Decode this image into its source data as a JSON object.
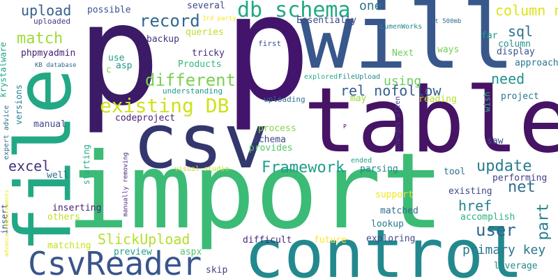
{
  "words": [
    {
      "text": "p",
      "color": "#3b1a66"
    },
    {
      "text": "p",
      "color": "#43146b"
    },
    {
      "text": "will",
      "color": "#38588c"
    },
    {
      "text": "table",
      "color": "#471365"
    },
    {
      "text": "import",
      "color": "#3bbb75"
    },
    {
      "text": "csv",
      "color": "#33376e"
    },
    {
      "text": "control",
      "color": "#23898e"
    },
    {
      "text": "file",
      "color": "#22a884"
    },
    {
      "text": "CsvReader",
      "color": "#39558c"
    },
    {
      "text": "db schema",
      "color": "#22a884"
    },
    {
      "text": "existing DB",
      "color": "#d0e11c"
    },
    {
      "text": "different",
      "color": "#7ad151"
    },
    {
      "text": "record",
      "color": "#30688e"
    },
    {
      "text": "upload",
      "color": "#355f8d"
    },
    {
      "text": "match",
      "color": "#9fda3a"
    },
    {
      "text": "Framework",
      "color": "#1f9e89"
    },
    {
      "text": "update",
      "color": "#287c8e"
    },
    {
      "text": "excel",
      "color": "#46327e"
    },
    {
      "text": "SlickUpload",
      "color": "#b5de2b"
    },
    {
      "text": "primary key",
      "color": "#2a788e"
    },
    {
      "text": "user",
      "color": "#31668e"
    },
    {
      "text": "net",
      "color": "#2d708e"
    },
    {
      "text": "part",
      "color": "#277f8e"
    },
    {
      "text": "href",
      "color": "#26828e"
    },
    {
      "text": "rel nofollow",
      "color": "#355f8d"
    },
    {
      "text": "using",
      "color": "#6ccd5a"
    },
    {
      "text": "need",
      "color": "#21918c"
    },
    {
      "text": "sql",
      "color": "#2e6d8e"
    },
    {
      "text": "column names",
      "color": "#dde318"
    },
    {
      "text": "one",
      "color": "#2b748e"
    },
    {
      "text": "leverage",
      "color": "#228c8d"
    },
    {
      "text": "exploring",
      "color": "#3e4989"
    },
    {
      "text": "future",
      "color": "#fde725"
    },
    {
      "text": "difficult",
      "color": "#482878"
    },
    {
      "text": "inserting",
      "color": "#482173"
    },
    {
      "text": "others",
      "color": "#c2df23"
    },
    {
      "text": "matching",
      "color": "#c8e020"
    },
    {
      "text": "preview",
      "color": "#1fa188"
    },
    {
      "text": "aspx",
      "color": "#50c46a"
    },
    {
      "text": "skip",
      "color": "#433e85"
    },
    {
      "text": "lookup",
      "color": "#2a788e"
    },
    {
      "text": "matched",
      "color": "#31688e"
    },
    {
      "text": "accomplish",
      "color": "#2db27d"
    },
    {
      "text": "existing",
      "color": "#3f4788"
    },
    {
      "text": "performing",
      "color": "#433e85"
    },
    {
      "text": "tool",
      "color": "#2c728e"
    },
    {
      "text": "support",
      "color": "#f1e51d"
    },
    {
      "text": "parsing",
      "color": "#24868e"
    },
    {
      "text": "provides",
      "color": "#52c569"
    },
    {
      "text": "schema",
      "color": "#3f4889"
    },
    {
      "text": "process",
      "color": "#86d549"
    },
    {
      "text": "saw",
      "color": "#3e4c8a"
    },
    {
      "text": "codeproject",
      "color": "#481f70"
    },
    {
      "text": "manual",
      "color": "#3e4a89"
    },
    {
      "text": "phpmyadmin",
      "color": "#482173"
    },
    {
      "text": "uploaded",
      "color": "#453781"
    },
    {
      "text": "backup",
      "color": "#46337f"
    },
    {
      "text": "queries",
      "color": "#b8de29"
    },
    {
      "text": "several",
      "color": "#3e4989"
    },
    {
      "text": "possible",
      "color": "#3b528b"
    },
    {
      "text": "tricky",
      "color": "#472c7a"
    },
    {
      "text": "Products",
      "color": "#35b779"
    },
    {
      "text": "use",
      "color": "#1fa187"
    },
    {
      "text": "asp",
      "color": "#1f968b"
    },
    {
      "text": "Essentially",
      "color": "#404688"
    },
    {
      "text": "LumenWorks",
      "color": "#228b8d"
    },
    {
      "text": "first",
      "color": "#3b528b"
    },
    {
      "text": "Next",
      "color": "#6ece58"
    },
    {
      "text": "ways",
      "color": "#75d054"
    },
    {
      "text": "column",
      "color": "#21918c"
    },
    {
      "text": "display",
      "color": "#3a538b"
    },
    {
      "text": "approach",
      "color": "#2a788e"
    },
    {
      "text": "far",
      "color": "#1e9c89"
    },
    {
      "text": "reading",
      "color": "#b5de2b"
    },
    {
      "text": "project",
      "color": "#2a768e"
    },
    {
      "text": "may",
      "color": "#98d83e"
    },
    {
      "text": "uploading",
      "color": "#2d708e"
    },
    {
      "text": "understanding",
      "color": "#1f9a8a"
    },
    {
      "text": "explored",
      "color": "#25ab82"
    },
    {
      "text": "FileUpload",
      "color": "#23888e"
    },
    {
      "text": "KB database",
      "color": "#306a8e"
    },
    {
      "text": "lt 500mb",
      "color": "#2e6e8e"
    },
    {
      "text": "3rd party",
      "color": "#f8e621"
    },
    {
      "text": "c",
      "color": "#81d34d"
    },
    {
      "text": "visual studio",
      "color": "#bddf26"
    },
    {
      "text": "ended",
      "color": "#1fa187"
    },
    {
      "text": "well",
      "color": "#2e6d8e"
    },
    {
      "text": "insert",
      "color": "#39568c"
    },
    {
      "text": "versions",
      "color": "#26818e"
    },
    {
      "text": "krystalware",
      "color": "#22a785"
    },
    {
      "text": "expert advice",
      "color": "#2d718e"
    },
    {
      "text": "starting",
      "color": "#25ab82"
    },
    {
      "text": "manually removing",
      "color": "#482576"
    },
    {
      "text": "advance requirements",
      "color": "#f1e51d"
    },
    {
      "text": "changes often",
      "color": "#443a83"
    },
    {
      "text": "wish",
      "color": "#2db27d"
    },
    {
      "text": "P",
      "color": "#440154"
    }
  ]
}
